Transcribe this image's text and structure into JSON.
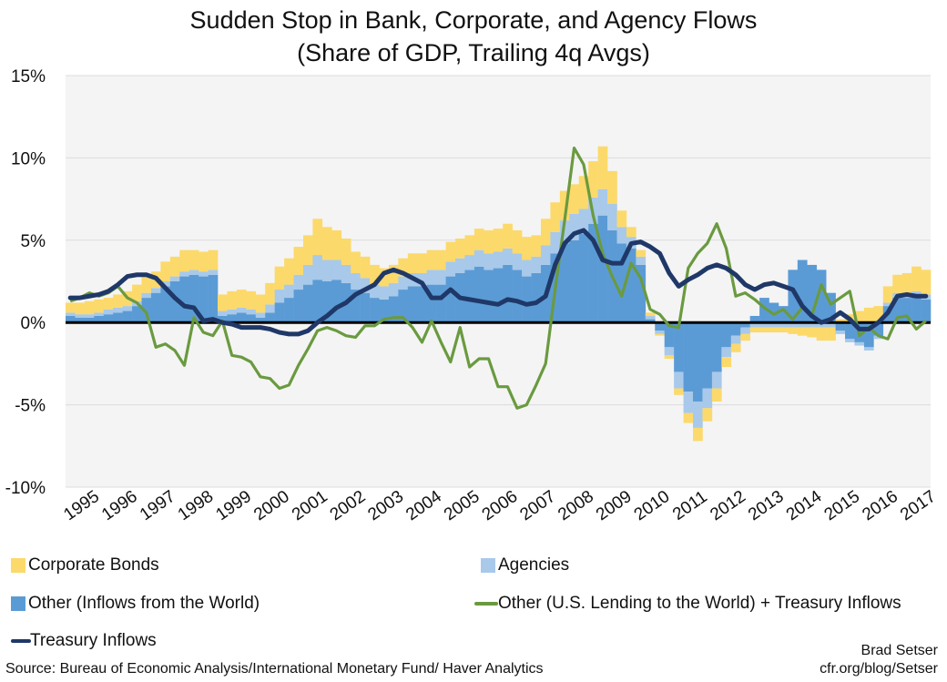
{
  "title_line1": "Sudden Stop in Bank, Corporate, and Agency Flows",
  "title_line2": "(Share of GDP, Trailing 4q Avgs)",
  "source": "Source: Bureau of Economic Analysis/International Monetary Fund/ Haver Analytics",
  "credit_name": "Brad Setser",
  "credit_url": "cfr.org/blog/Setser",
  "colors": {
    "corporate_bonds": "#fcd96b",
    "agencies": "#a8c9ea",
    "other_inflows": "#5b9bd5",
    "other_lending": "#6a9a3f",
    "treasury": "#1f3868",
    "zero_line": "#000000",
    "plot_bg": "#f4f4f4"
  },
  "legend": {
    "corporate_bonds": "Corporate Bonds",
    "agencies": "Agencies",
    "other_inflows": "Other (Inflows from the World)",
    "other_lending": "Other (U.S. Lending to the World) + Treasury Inflows",
    "treasury": "Treasury Inflows"
  },
  "chart_data": {
    "type": "bar",
    "x_ticks": [
      "1995",
      "1996",
      "1997",
      "1998",
      "1999",
      "2000",
      "2001",
      "2002",
      "2003",
      "2004",
      "2005",
      "2006",
      "2007",
      "2008",
      "2009",
      "2010",
      "2011",
      "2012",
      "2013",
      "2014",
      "2015",
      "2016",
      "2017"
    ],
    "y_ticks": [
      "15%",
      "10%",
      "5%",
      "0%",
      "-5%",
      "-10%"
    ],
    "ylim": [
      -10,
      15
    ],
    "grid": true,
    "legend_position": "bottom",
    "x_start": 1995,
    "quarters": 91,
    "stacked_bars": {
      "other_inflows": [
        0.4,
        0.3,
        0.3,
        0.4,
        0.5,
        0.6,
        0.7,
        1.0,
        1.5,
        1.8,
        2.2,
        2.5,
        2.8,
        2.9,
        2.8,
        2.9,
        0.4,
        0.5,
        0.6,
        0.5,
        0.3,
        0.6,
        1.2,
        1.5,
        2.0,
        2.3,
        2.6,
        2.5,
        2.6,
        2.4,
        2.0,
        1.8,
        1.5,
        1.4,
        1.6,
        2.0,
        2.2,
        2.2,
        2.3,
        2.3,
        2.8,
        3.0,
        3.2,
        3.4,
        3.2,
        3.3,
        3.5,
        3.2,
        2.8,
        3.0,
        3.5,
        4.2,
        4.8,
        5.0,
        5.4,
        6.0,
        6.5,
        5.6,
        4.8,
        4.5,
        3.5,
        0.2,
        -0.5,
        -1.5,
        -3.0,
        -4.2,
        -4.8,
        -4.0,
        -3.0,
        -1.5,
        -0.8,
        -0.3,
        0.4,
        1.5,
        1.2,
        1.0,
        3.2,
        3.8,
        3.5,
        3.2,
        1.8,
        -0.5,
        -1.0,
        -1.2,
        -1.5,
        -0.8,
        1.0,
        1.5,
        1.5,
        1.6,
        1.4
      ],
      "agencies": [
        0.2,
        0.2,
        0.2,
        0.2,
        0.3,
        0.3,
        0.3,
        0.3,
        0.3,
        0.3,
        0.3,
        0.3,
        0.3,
        0.3,
        0.3,
        0.3,
        0.3,
        0.3,
        0.3,
        0.3,
        0.3,
        0.5,
        0.8,
        0.8,
        0.9,
        1.2,
        1.5,
        1.3,
        1.2,
        1.1,
        1.0,
        0.9,
        0.8,
        0.8,
        0.8,
        0.8,
        0.8,
        0.8,
        0.9,
        0.9,
        0.9,
        0.9,
        0.9,
        1.0,
        1.0,
        1.0,
        1.0,
        1.0,
        1.0,
        1.0,
        1.2,
        1.3,
        1.4,
        1.6,
        1.5,
        1.6,
        1.6,
        1.6,
        1.0,
        0.7,
        0.5,
        0.2,
        -0.2,
        -0.5,
        -1.0,
        -1.3,
        -1.6,
        -1.2,
        -1.0,
        -0.6,
        -0.5,
        -0.4,
        -0.3,
        -0.3,
        -0.3,
        -0.3,
        -0.3,
        -0.3,
        -0.3,
        -0.3,
        -0.3,
        -0.2,
        -0.2,
        -0.2,
        -0.2,
        -0.2,
        0.2,
        0.3,
        0.3,
        0.3,
        0.3
      ],
      "corporate_bonds": [
        0.6,
        0.7,
        0.8,
        0.8,
        0.7,
        0.8,
        0.9,
        1.0,
        1.0,
        1.0,
        1.2,
        1.2,
        1.3,
        1.2,
        1.2,
        1.2,
        1.0,
        1.1,
        1.1,
        1.1,
        1.1,
        1.3,
        1.4,
        1.6,
        1.7,
        1.8,
        2.2,
        2.0,
        1.8,
        1.6,
        1.3,
        1.3,
        1.2,
        1.1,
        1.1,
        1.1,
        1.2,
        1.2,
        1.2,
        1.2,
        1.2,
        1.2,
        1.2,
        1.3,
        1.4,
        1.4,
        1.5,
        1.4,
        1.4,
        1.3,
        1.6,
        1.8,
        1.8,
        1.8,
        2.0,
        2.2,
        2.6,
        2.0,
        1.0,
        0.6,
        0.4,
        0.2,
        -0.1,
        -0.2,
        -0.4,
        -0.6,
        -0.8,
        -0.8,
        -0.8,
        -0.6,
        -0.5,
        -0.4,
        -0.3,
        -0.3,
        -0.3,
        -0.3,
        -0.4,
        -0.5,
        -0.6,
        -0.8,
        -0.8,
        0.2,
        0.5,
        0.7,
        0.9,
        1.0,
        1.0,
        1.1,
        1.2,
        1.5,
        1.5
      ]
    },
    "lines": {
      "treasury": [
        1.5,
        1.5,
        1.6,
        1.7,
        1.9,
        2.3,
        2.8,
        2.9,
        2.9,
        2.7,
        2.1,
        1.5,
        1.0,
        0.9,
        0.1,
        0.2,
        0.0,
        -0.1,
        -0.3,
        -0.3,
        -0.3,
        -0.4,
        -0.6,
        -0.7,
        -0.7,
        -0.5,
        0.0,
        0.4,
        0.9,
        1.2,
        1.7,
        2.0,
        2.3,
        3.0,
        3.2,
        3.0,
        2.7,
        2.4,
        1.5,
        1.5,
        2.0,
        1.5,
        1.4,
        1.3,
        1.2,
        1.1,
        1.4,
        1.3,
        1.1,
        1.2,
        1.6,
        3.5,
        4.8,
        5.4,
        5.6,
        5.0,
        3.8,
        3.6,
        3.6,
        4.8,
        4.9,
        4.6,
        4.2,
        3.0,
        2.2,
        2.6,
        2.9,
        3.3,
        3.5,
        3.3,
        2.9,
        2.3,
        2.0,
        2.3,
        2.4,
        2.2,
        2.0,
        1.0,
        0.4,
        0.0,
        0.2,
        0.6,
        0.2,
        -0.4,
        -0.4,
        0.0,
        0.6,
        1.6,
        1.7,
        1.6,
        1.6
      ],
      "other_lending": [
        1.3,
        1.5,
        1.8,
        1.6,
        1.8,
        2.2,
        1.5,
        1.2,
        0.6,
        -1.5,
        -1.3,
        -1.7,
        -2.6,
        0.3,
        -0.6,
        -0.8,
        0.1,
        -2.0,
        -2.1,
        -2.4,
        -3.3,
        -3.4,
        -4.0,
        -3.8,
        -2.6,
        -1.6,
        -0.5,
        -0.3,
        -0.5,
        -0.8,
        -0.9,
        -0.2,
        -0.2,
        0.2,
        0.3,
        0.3,
        -0.3,
        -1.2,
        0.1,
        -1.2,
        -2.4,
        -0.3,
        -2.7,
        -2.2,
        -2.2,
        -3.9,
        -3.9,
        -5.2,
        -5.0,
        -3.8,
        -2.5,
        2.0,
        6.2,
        10.6,
        9.6,
        6.5,
        4.2,
        2.8,
        1.6,
        3.6,
        2.7,
        0.8,
        0.5,
        -0.2,
        -0.3,
        3.3,
        4.2,
        4.8,
        6.0,
        4.5,
        1.6,
        1.8,
        1.4,
        0.9,
        0.5,
        0.8,
        0.2,
        0.9,
        0.4,
        2.3,
        1.1,
        1.5,
        1.9,
        -0.8,
        -0.3,
        -0.8,
        -1.0,
        0.3,
        0.4,
        -0.4,
        0.1
      ]
    }
  }
}
